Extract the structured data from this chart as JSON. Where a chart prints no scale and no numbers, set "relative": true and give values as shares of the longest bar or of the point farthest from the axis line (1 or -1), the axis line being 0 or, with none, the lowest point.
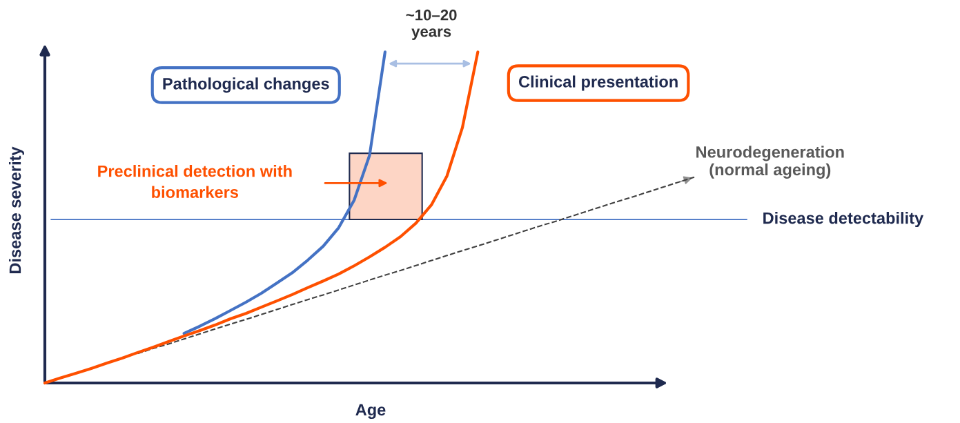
{
  "chart_data": {
    "type": "line",
    "relative": true,
    "xlabel": "Age",
    "ylabel": "Disease severity",
    "categories": [
      null,
      null,
      null,
      null,
      null,
      null,
      null,
      null,
      null,
      null,
      null,
      null,
      null,
      null,
      null,
      null,
      null,
      null,
      null,
      null,
      null,
      null,
      null,
      null,
      null,
      null,
      null,
      null,
      null,
      null,
      null,
      null,
      null,
      null,
      null,
      null,
      null,
      null,
      null,
      null,
      null,
      null,
      null
    ],
    "series": [
      {
        "name": "Neurodegeneration\n(normal ageing)",
        "color": "#404040",
        "line_style": "dashed",
        "values": [
          null,
          null,
          null,
          null,
          null,
          null,
          0.089,
          0.104,
          0.118,
          0.133,
          0.148,
          0.163,
          0.178,
          0.192,
          0.207,
          0.222,
          0.237,
          0.252,
          0.266,
          0.281,
          0.296,
          0.311,
          0.326,
          0.34,
          0.355,
          0.37,
          0.385,
          0.4,
          0.414,
          0.429,
          0.444,
          0.459,
          0.474,
          0.488,
          0.503,
          0.518,
          0.533,
          0.548,
          0.562,
          0.577,
          0.592,
          0.607,
          0.622
        ]
      },
      {
        "name": "Pathological changes",
        "color": "#4472c4",
        "line_style": "solid",
        "values": [
          null,
          null,
          null,
          null,
          null,
          null,
          null,
          null,
          null,
          0.15,
          0.171,
          0.194,
          0.219,
          0.244,
          0.271,
          0.302,
          0.333,
          0.371,
          0.413,
          0.469,
          0.552,
          0.688,
          1.0,
          null,
          null,
          null,
          null,
          null,
          null,
          null,
          null,
          null,
          null,
          null,
          null,
          null,
          null,
          null,
          null,
          null,
          null,
          null,
          null
        ]
      },
      {
        "name": "Clinical presentation",
        "color": "#fe5000",
        "line_style": "solid",
        "values": [
          0,
          0.015,
          0.029,
          0.044,
          0.06,
          0.075,
          0.092,
          0.108,
          0.125,
          0.142,
          0.158,
          0.175,
          0.194,
          0.21,
          0.229,
          0.248,
          0.267,
          0.288,
          0.308,
          0.329,
          0.354,
          0.381,
          0.41,
          0.442,
          0.483,
          0.538,
          0.625,
          0.771,
          1.0,
          null,
          null,
          null,
          null,
          null,
          null,
          null,
          null,
          null,
          null,
          null,
          null,
          null,
          null
        ]
      }
    ],
    "ref_lines": [
      {
        "axis": "y",
        "value": 0.494,
        "label": "Disease detectability",
        "color": "#4472c4"
      }
    ],
    "annotations": [
      "~10–20 years",
      "Preclinical detection with biomarkers"
    ]
  }
}
